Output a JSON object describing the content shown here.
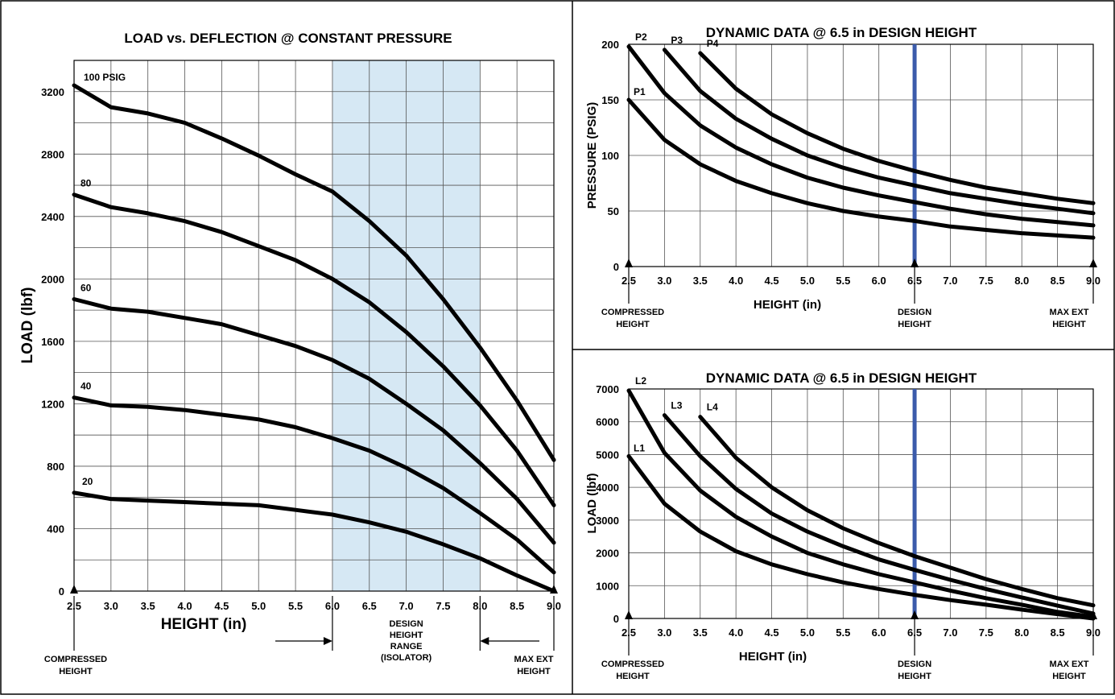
{
  "chart_data": [
    {
      "type": "line",
      "title": "LOAD vs. DEFLECTION @ CONSTANT PRESSURE",
      "xlabel": "HEIGHT (in)",
      "ylabel": "LOAD (lbf)",
      "xlim": [
        2.5,
        9.0
      ],
      "ylim": [
        0,
        3400
      ],
      "xticks": [
        "2.5",
        "3.0",
        "3.5",
        "4.0",
        "4.5",
        "5.0",
        "5.5",
        "6.0",
        "6.5",
        "7.0",
        "7.5",
        "8.0",
        "8.5",
        "9.0"
      ],
      "yticks": [
        "0",
        "400",
        "800",
        "1200",
        "1600",
        "2000",
        "2400",
        "2800",
        "3200"
      ],
      "shaded_range": [
        6.0,
        8.0
      ],
      "shade_color": "#d6e8f4",
      "series": [
        {
          "name": "100 PSIG",
          "x": [
            2.5,
            3.0,
            3.5,
            4.0,
            4.5,
            5.0,
            5.5,
            6.0,
            6.5,
            7.0,
            7.5,
            8.0,
            8.5,
            9.0
          ],
          "values": [
            3240,
            3100,
            3060,
            3000,
            2900,
            2790,
            2670,
            2560,
            2370,
            2150,
            1870,
            1560,
            1220,
            840
          ]
        },
        {
          "name": "80",
          "x": [
            2.5,
            3.0,
            3.5,
            4.0,
            4.5,
            5.0,
            5.5,
            6.0,
            6.5,
            7.0,
            7.5,
            8.0,
            8.5,
            9.0
          ],
          "values": [
            2540,
            2460,
            2420,
            2370,
            2300,
            2210,
            2120,
            2000,
            1850,
            1660,
            1440,
            1190,
            900,
            550
          ]
        },
        {
          "name": "60",
          "x": [
            2.5,
            3.0,
            3.5,
            4.0,
            4.5,
            5.0,
            5.5,
            6.0,
            6.5,
            7.0,
            7.5,
            8.0,
            8.5,
            9.0
          ],
          "values": [
            1870,
            1810,
            1790,
            1750,
            1710,
            1640,
            1570,
            1480,
            1360,
            1200,
            1030,
            820,
            590,
            310
          ]
        },
        {
          "name": "40",
          "x": [
            2.5,
            3.0,
            3.5,
            4.0,
            4.5,
            5.0,
            5.5,
            6.0,
            6.5,
            7.0,
            7.5,
            8.0,
            8.5,
            9.0
          ],
          "values": [
            1240,
            1190,
            1180,
            1160,
            1130,
            1100,
            1050,
            980,
            900,
            790,
            660,
            500,
            330,
            120
          ]
        },
        {
          "name": "20",
          "x": [
            2.5,
            3.0,
            3.5,
            4.0,
            4.5,
            5.0,
            5.5,
            6.0,
            6.5,
            7.0,
            7.5,
            8.0,
            8.5,
            9.0
          ],
          "values": [
            630,
            590,
            580,
            570,
            560,
            550,
            520,
            490,
            440,
            380,
            300,
            210,
            100,
            0
          ]
        }
      ],
      "annotations": {
        "compressed": [
          "COMPRESSED",
          "HEIGHT"
        ],
        "design": [
          "DESIGN",
          "HEIGHT",
          "RANGE",
          "(ISOLATOR)"
        ],
        "max_ext": [
          "MAX EXT",
          "HEIGHT"
        ]
      }
    },
    {
      "type": "line",
      "title": "DYNAMIC DATA @ 6.5 in DESIGN HEIGHT",
      "xlabel": "HEIGHT (in)",
      "ylabel": "PRESSURE (PSIG)",
      "xlim": [
        2.5,
        9.0
      ],
      "ylim": [
        0,
        200
      ],
      "xticks": [
        "2.5",
        "3.0",
        "3.5",
        "4.0",
        "4.5",
        "5.0",
        "5.5",
        "6.0",
        "6.5",
        "7.0",
        "7.5",
        "8.0",
        "8.5",
        "9.0"
      ],
      "yticks": [
        "0",
        "50",
        "100",
        "150",
        "200"
      ],
      "design_line": 6.5,
      "design_line_color": "#3b5bab",
      "series": [
        {
          "name": "P1",
          "x": [
            2.5,
            3.0,
            3.5,
            4.0,
            4.5,
            5.0,
            5.5,
            6.0,
            6.5,
            7.0,
            7.5,
            8.0,
            8.5,
            9.0
          ],
          "values": [
            150,
            114,
            92,
            77,
            66,
            57,
            50,
            45,
            41,
            36,
            33,
            30,
            28,
            26
          ]
        },
        {
          "name": "P2",
          "x": [
            2.5,
            3.0,
            3.5,
            4.0,
            4.5,
            5.0,
            5.5,
            6.0,
            6.5,
            7.0,
            7.5,
            8.0,
            8.5,
            9.0
          ],
          "values": [
            198,
            156,
            127,
            107,
            92,
            80,
            71,
            64,
            58,
            52,
            47,
            43,
            40,
            37
          ]
        },
        {
          "name": "P3",
          "x": [
            3.0,
            3.5,
            4.0,
            4.5,
            5.0,
            5.5,
            6.0,
            6.5,
            7.0,
            7.5,
            8.0,
            8.5,
            9.0
          ],
          "values": [
            195,
            158,
            133,
            115,
            100,
            89,
            80,
            73,
            66,
            61,
            56,
            52,
            48
          ]
        },
        {
          "name": "P4",
          "x": [
            3.5,
            4.0,
            4.5,
            5.0,
            5.5,
            6.0,
            6.5,
            7.0,
            7.5,
            8.0,
            8.5,
            9.0
          ],
          "values": [
            192,
            160,
            137,
            120,
            106,
            95,
            86,
            78,
            71,
            66,
            61,
            57
          ]
        }
      ],
      "annotations": {
        "compressed": [
          "COMPRESSED",
          "HEIGHT"
        ],
        "design": [
          "DESIGN",
          "HEIGHT"
        ],
        "max_ext": [
          "MAX EXT",
          "HEIGHT"
        ]
      }
    },
    {
      "type": "line",
      "title": "DYNAMIC DATA @ 6.5 in DESIGN HEIGHT",
      "xlabel": "HEIGHT (in)",
      "ylabel": "LOAD (lbf)",
      "xlim": [
        2.5,
        9.0
      ],
      "ylim": [
        0,
        7000
      ],
      "xticks": [
        "2.5",
        "3.0",
        "3.5",
        "4.0",
        "4.5",
        "5.0",
        "5.5",
        "6.0",
        "6.5",
        "7.0",
        "7.5",
        "8.0",
        "8.5",
        "9.0"
      ],
      "yticks": [
        "0",
        "1000",
        "2000",
        "3000",
        "4000",
        "5000",
        "6000",
        "7000"
      ],
      "design_line": 6.5,
      "design_line_color": "#3b5bab",
      "series": [
        {
          "name": "L1",
          "x": [
            2.5,
            3.0,
            3.5,
            4.0,
            4.5,
            5.0,
            5.5,
            6.0,
            6.5,
            7.0,
            7.5,
            8.0,
            8.5,
            9.0
          ],
          "values": [
            4950,
            3500,
            2650,
            2050,
            1650,
            1350,
            1100,
            900,
            720,
            560,
            420,
            270,
            130,
            0
          ]
        },
        {
          "name": "L2",
          "x": [
            2.5,
            3.0,
            3.5,
            4.0,
            4.5,
            5.0,
            5.5,
            6.0,
            6.5,
            7.0,
            7.5,
            8.0,
            8.5,
            9.0
          ],
          "values": [
            6950,
            5050,
            3900,
            3100,
            2500,
            2000,
            1650,
            1350,
            1100,
            850,
            620,
            420,
            200,
            50
          ]
        },
        {
          "name": "L3",
          "x": [
            3.0,
            3.5,
            4.0,
            4.5,
            5.0,
            5.5,
            6.0,
            6.5,
            7.0,
            7.5,
            8.0,
            8.5,
            9.0
          ],
          "values": [
            6200,
            4950,
            3950,
            3200,
            2650,
            2200,
            1800,
            1480,
            1180,
            900,
            640,
            390,
            150
          ]
        },
        {
          "name": "L4",
          "x": [
            3.5,
            4.0,
            4.5,
            5.0,
            5.5,
            6.0,
            6.5,
            7.0,
            7.5,
            8.0,
            8.5,
            9.0
          ],
          "values": [
            6150,
            4900,
            4000,
            3300,
            2750,
            2300,
            1900,
            1550,
            1200,
            900,
            620,
            400
          ]
        }
      ],
      "annotations": {
        "compressed": [
          "COMPRESSED",
          "HEIGHT"
        ],
        "design": [
          "DESIGN",
          "HEIGHT"
        ],
        "max_ext": [
          "MAX EXT",
          "HEIGHT"
        ]
      }
    }
  ]
}
